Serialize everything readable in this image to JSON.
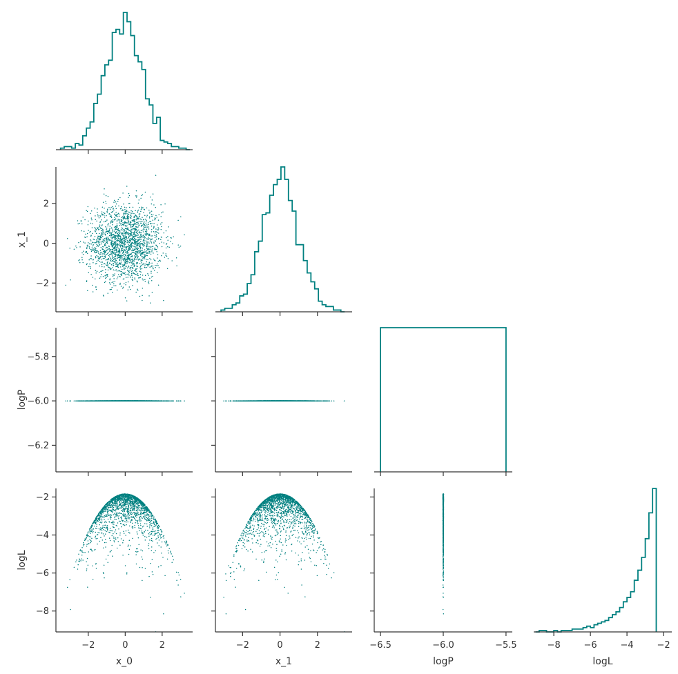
{
  "colors": {
    "series": "#008080",
    "axis": "#333333",
    "background": "#ffffff"
  },
  "chart_data": {
    "type": "pairplot",
    "corner": true,
    "variables": [
      "x_0",
      "x_1",
      "logP",
      "logL"
    ],
    "ranges": {
      "x_0": [
        -3.75,
        3.65
      ],
      "x_1": [
        -3.45,
        3.85
      ],
      "logP": [
        -6.55,
        -5.45
      ],
      "logL": [
        -9.1,
        -1.55
      ],
      "logP_y": [
        -6.32,
        -5.67
      ]
    },
    "ticks": {
      "x_0": [
        "-2",
        "0",
        "2"
      ],
      "x_1": [
        "-2",
        "0",
        "2"
      ],
      "logP": [
        "-6.5",
        "-6.0",
        "-5.5"
      ],
      "logL": [
        "-8",
        "-6",
        "-4",
        "-2"
      ],
      "logP_y": [
        "-6.2",
        "-6.0",
        "-5.8"
      ]
    },
    "hist_x_0": {
      "edges_start": -3.5,
      "bin_width": 0.2,
      "counts": [
        1,
        2,
        2,
        1,
        4,
        3,
        9,
        14,
        18,
        30,
        36,
        48,
        55,
        58,
        76,
        78,
        75,
        89,
        83,
        74,
        61,
        57,
        52,
        33,
        29,
        17,
        21,
        6,
        5,
        4,
        2,
        2,
        1,
        1,
        0
      ]
    },
    "hist_x_1": {
      "edges_start": -3.15,
      "bin_width": 0.2,
      "counts": [
        1,
        2,
        2,
        4,
        5,
        9,
        10,
        16,
        21,
        34,
        40,
        55,
        56,
        66,
        72,
        75,
        82,
        75,
        63,
        57,
        38,
        38,
        29,
        22,
        17,
        13,
        6,
        4,
        3,
        3,
        1,
        1,
        0
      ]
    },
    "hist_logP": {
      "edges": [
        -6.5,
        -5.5
      ],
      "counts": [
        1
      ]
    },
    "hist_logL": {
      "edges_start": -9.0,
      "bin_width": 0.2,
      "counts": [
        0,
        1,
        1,
        0,
        0,
        1,
        0,
        1,
        1,
        1,
        2,
        2,
        2,
        3,
        4,
        3,
        5,
        6,
        7,
        8,
        10,
        12,
        14,
        17,
        21,
        24,
        28,
        36,
        43,
        52,
        65,
        83,
        100
      ]
    },
    "scatter": {
      "n_points": 2000,
      "x_0_sigma": 1.0,
      "x_1_sigma": 1.0,
      "logP_value": -6.0,
      "logL_max": -1.84,
      "logL_relation": "logL = -1.84 - 0.5 * (x_0^2 + x_1^2)"
    },
    "panels": [
      {
        "row": 0,
        "col": 0,
        "kind": "hist",
        "x": "x_0"
      },
      {
        "row": 1,
        "col": 0,
        "kind": "scatter",
        "x": "x_0",
        "y": "x_1"
      },
      {
        "row": 1,
        "col": 1,
        "kind": "hist",
        "x": "x_1"
      },
      {
        "row": 2,
        "col": 0,
        "kind": "scatter",
        "x": "x_0",
        "y": "logP"
      },
      {
        "row": 2,
        "col": 1,
        "kind": "scatter",
        "x": "x_1",
        "y": "logP"
      },
      {
        "row": 2,
        "col": 2,
        "kind": "hist",
        "x": "logP"
      },
      {
        "row": 3,
        "col": 0,
        "kind": "scatter",
        "x": "x_0",
        "y": "logL"
      },
      {
        "row": 3,
        "col": 1,
        "kind": "scatter",
        "x": "x_1",
        "y": "logL"
      },
      {
        "row": 3,
        "col": 2,
        "kind": "scatter",
        "x": "logP",
        "y": "logL"
      },
      {
        "row": 3,
        "col": 3,
        "kind": "hist",
        "x": "logL"
      }
    ],
    "axis_labels": {
      "x": [
        "x_0",
        "x_1",
        "logP",
        "logL"
      ],
      "y": [
        "",
        "x_1",
        "logP",
        "logL"
      ]
    }
  }
}
